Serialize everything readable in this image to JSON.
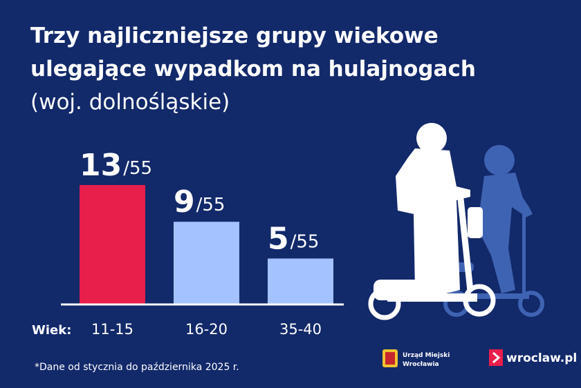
{
  "chart_data": {
    "type": "bar",
    "title": [
      "Trzy najliczniejsze grupy wiekowe",
      "ulegające wypadkom na hulajnogach"
    ],
    "subtitle": "(woj. dolnośląskie)",
    "x_label": "Wiek:",
    "categories": [
      "11-15",
      "16-20",
      "35-40"
    ],
    "values": [
      13,
      9,
      5
    ],
    "total_label": "/55",
    "colors": [
      "#e81e4b",
      "#a3c2ff",
      "#a3c2ff"
    ],
    "footnote": "*Dane od stycznia do października 2025 r.",
    "logos": {
      "city_office": [
        "Urząd Miejski",
        "Wrocławia"
      ],
      "site": "wroclaw.pl"
    }
  }
}
